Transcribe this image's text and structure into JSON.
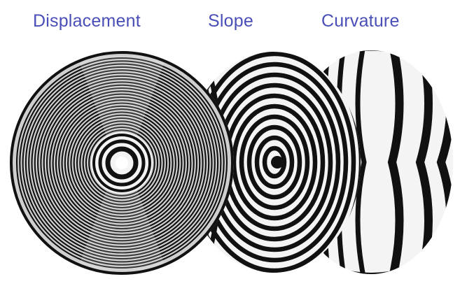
{
  "labels": {
    "displacement": "Displacement",
    "slope": "Slope",
    "curvature": "Curvature"
  },
  "colors": {
    "label_text": "#4a4fb8",
    "fringe_dark": "#111111",
    "fringe_light": "#f4f4f4",
    "background": "#ffffff"
  }
}
